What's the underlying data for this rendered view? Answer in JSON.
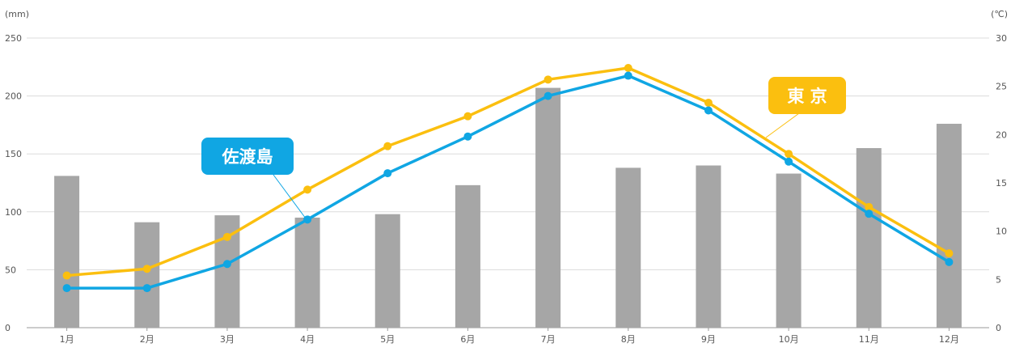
{
  "chart_data": {
    "type": "bar+line",
    "categories": [
      "1月",
      "2月",
      "3月",
      "4月",
      "5月",
      "6月",
      "7月",
      "8月",
      "9月",
      "10月",
      "11月",
      "12月"
    ],
    "y_left": {
      "unit": "(mm)",
      "ylim": [
        0,
        250
      ],
      "ticks": [
        0,
        50,
        100,
        150,
        200,
        250
      ]
    },
    "y_right": {
      "unit": "(℃)",
      "ylim": [
        0,
        30
      ],
      "ticks": [
        0,
        5,
        10,
        15,
        20,
        25,
        30
      ]
    },
    "grid": true,
    "bars": {
      "axis": "left",
      "color": "#a6a6a6",
      "values": [
        131,
        91,
        97,
        95,
        98,
        123,
        207,
        138,
        140,
        133,
        155,
        176
      ]
    },
    "series": [
      {
        "name": "東 京",
        "axis": "right",
        "color": "#fbbf0f",
        "values": [
          5.4,
          6.1,
          9.4,
          14.3,
          18.8,
          21.9,
          25.7,
          26.9,
          23.3,
          18.0,
          12.5,
          7.7
        ]
      },
      {
        "name": "佐渡島",
        "axis": "right",
        "color": "#10a6e3",
        "values": [
          4.1,
          4.1,
          6.6,
          11.2,
          16.0,
          19.8,
          24.0,
          26.1,
          22.5,
          17.2,
          11.8,
          6.8
        ]
      }
    ]
  }
}
